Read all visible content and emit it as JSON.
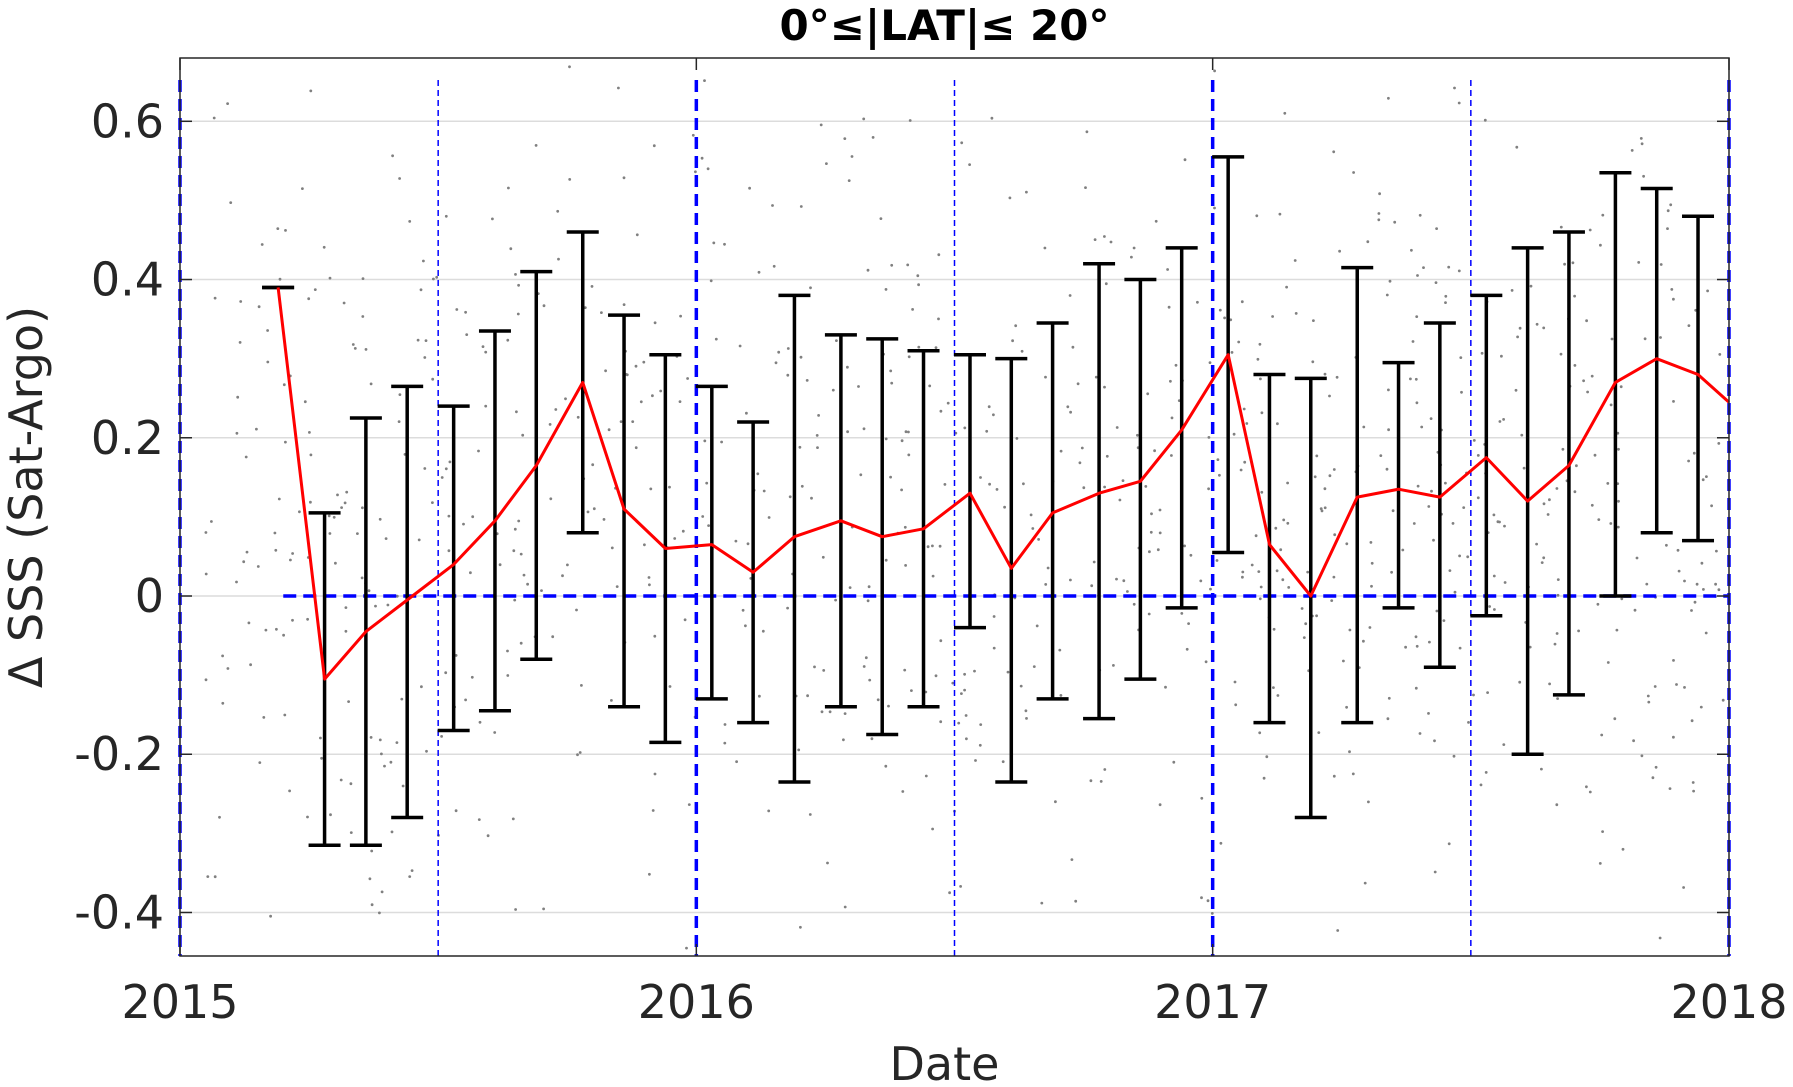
{
  "chart_data": {
    "type": "line",
    "title": "0°≤|LAT|≤ 20°",
    "xlabel": "Date",
    "ylabel": "Δ SSS (Sat-Argo)",
    "xlim": [
      2015.0,
      2018.0
    ],
    "ylim": [
      -0.455,
      0.68
    ],
    "xticks": [
      {
        "value": 2015,
        "label": "2015"
      },
      {
        "value": 2016,
        "label": "2016"
      },
      {
        "value": 2017,
        "label": "2017"
      },
      {
        "value": 2018,
        "label": "2018"
      }
    ],
    "yticks": [
      {
        "value": 0.6,
        "label": "0.6"
      },
      {
        "value": 0.4,
        "label": "0.4"
      },
      {
        "value": 0.2,
        "label": "0.2"
      },
      {
        "value": 0.0,
        "label": "0"
      },
      {
        "value": -0.2,
        "label": "-0.2"
      },
      {
        "value": -0.4,
        "label": "-0.4"
      }
    ],
    "grid": true,
    "legend": "none",
    "colors": {
      "mean_line": "#ff0000",
      "error_bars": "#000000",
      "reference_lines": "#0000ff",
      "scatter": "#808080",
      "grid": "#dcdcdc",
      "axes": "#262626"
    },
    "reference_lines": {
      "horizontal_zero": {
        "y": 0,
        "x_start": 2015.2
      },
      "year_lines": [
        2015.0,
        2016.0,
        2017.0,
        2018.0
      ],
      "half_year_lines": [
        2015.5,
        2016.5,
        2017.5
      ]
    },
    "series": [
      {
        "type": "line_with_errorbars",
        "x": [
          2015.19,
          2015.28,
          2015.36,
          2015.44,
          2015.53,
          2015.61,
          2015.69,
          2015.78,
          2015.86,
          2015.94,
          2016.03,
          2016.11,
          2016.19,
          2016.28,
          2016.36,
          2016.44,
          2016.53,
          2016.61,
          2016.69,
          2016.78,
          2016.86,
          2016.94,
          2017.03,
          2017.11,
          2017.19,
          2017.28,
          2017.36,
          2017.44,
          2017.53,
          2017.61,
          2017.69,
          2017.78,
          2017.86,
          2017.94
        ],
        "y": [
          0.39,
          -0.105,
          -0.045,
          -0.005,
          0.04,
          0.095,
          0.165,
          0.27,
          0.11,
          0.06,
          0.065,
          0.03,
          0.075,
          0.095,
          0.075,
          0.085,
          0.13,
          0.035,
          0.105,
          0.13,
          0.145,
          0.21,
          0.305,
          0.065,
          0.0,
          0.125,
          0.135,
          0.125,
          0.175,
          0.12,
          0.165,
          0.27,
          0.3,
          0.28
        ],
        "lower": [
          0.39,
          -0.315,
          -0.315,
          -0.28,
          -0.17,
          -0.145,
          -0.08,
          0.08,
          -0.14,
          -0.185,
          -0.13,
          -0.16,
          -0.235,
          -0.14,
          -0.175,
          -0.14,
          -0.04,
          -0.235,
          -0.13,
          -0.155,
          -0.105,
          -0.015,
          0.055,
          -0.16,
          -0.28,
          -0.16,
          -0.015,
          -0.09,
          -0.025,
          -0.2,
          -0.125,
          0.0,
          0.08,
          0.07
        ],
        "upper": [
          0.39,
          0.105,
          0.225,
          0.265,
          0.24,
          0.335,
          0.41,
          0.46,
          0.355,
          0.305,
          0.265,
          0.22,
          0.38,
          0.33,
          0.325,
          0.31,
          0.305,
          0.3,
          0.345,
          0.42,
          0.4,
          0.44,
          0.555,
          0.28,
          0.275,
          0.415,
          0.295,
          0.345,
          0.38,
          0.44,
          0.46,
          0.535,
          0.515,
          0.48
        ]
      }
    ],
    "line_end": {
      "x": 2018.0,
      "y": 0.245
    }
  }
}
